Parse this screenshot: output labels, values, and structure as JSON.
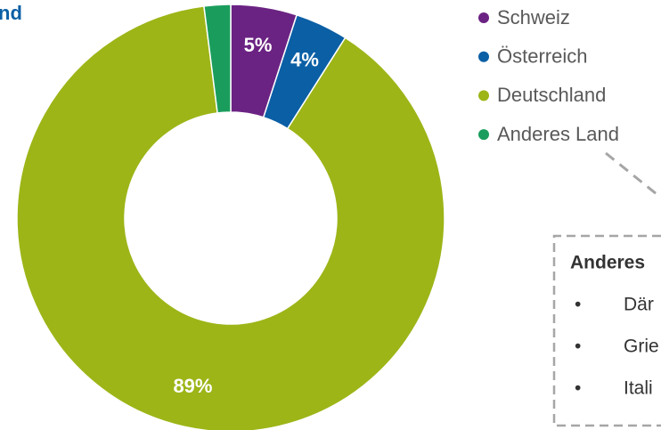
{
  "chart_data": {
    "type": "donut",
    "title": "nd",
    "categories": [
      "Schweiz",
      "Österreich",
      "Deutschland",
      "Anderes Land"
    ],
    "values": [
      5,
      4,
      89,
      2
    ],
    "value_labels": [
      "5%",
      "4%",
      "89%",
      null
    ],
    "colors": [
      "#6b2383",
      "#0b5fa5",
      "#9db517",
      "#1a9d5c"
    ],
    "legend": "top-right"
  },
  "box": {
    "title": "Anderes",
    "bullet": "•",
    "items": [
      "Där",
      "Grie",
      "Itali"
    ]
  }
}
